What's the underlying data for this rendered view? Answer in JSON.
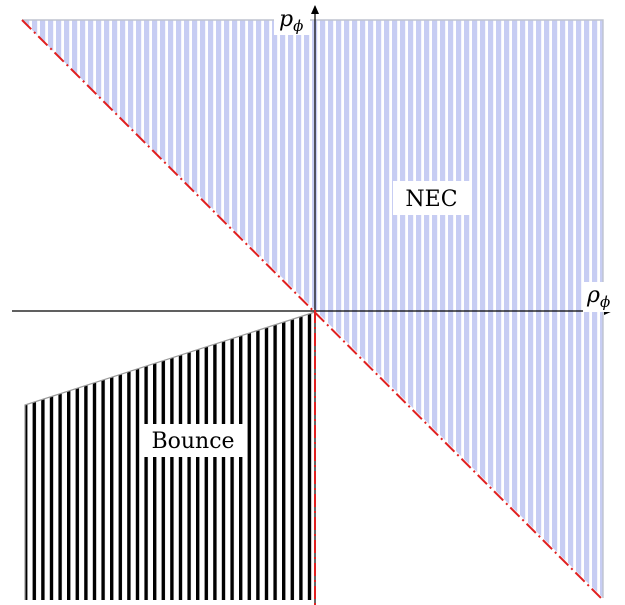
{
  "axes": {
    "x_label": "ρ",
    "x_label_sub": "ϕ",
    "y_label": "p",
    "y_label_sub": "ϕ"
  },
  "regions": {
    "nec_label": "NEC",
    "bounce_label": "Bounce"
  },
  "colors": {
    "nec_fill": "#c7cdf3",
    "nec_stripe": "#ffffff",
    "bounce_stripe": "#000000",
    "boundary_line": "#e02020",
    "axis": "#000000"
  }
}
